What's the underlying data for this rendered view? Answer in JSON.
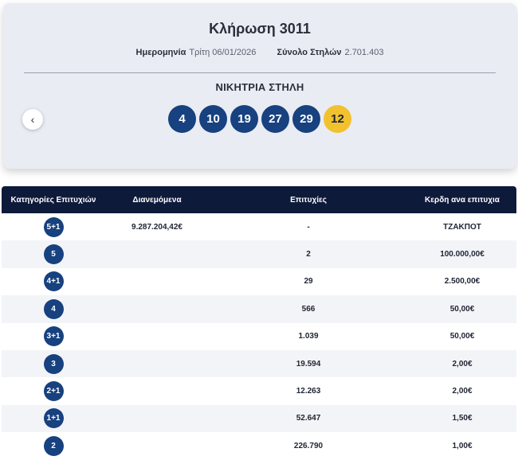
{
  "draw": {
    "title": "Κλήρωση 3011",
    "date_label": "Ημερομηνία",
    "date_value": "Τρίτη 06/01/2026",
    "columns_label": "Σύνολο Στηλών",
    "columns_value": "2.701.403",
    "winning_label": "ΝΙΚΗΤΡΙΑ ΣΤΗΛΗ",
    "prev_icon": "chevron-left-icon",
    "numbers": [
      "4",
      "10",
      "19",
      "27",
      "29"
    ],
    "bonus": "12",
    "colors": {
      "ball": "#17417f",
      "bonus": "#f2c12e",
      "header": "#0e1a3a"
    }
  },
  "table": {
    "headers": [
      "Κατηγορίες Επιτυχιών",
      "Διανεμόμενα",
      "Επιτυχίες",
      "Κερδη ανα επιτυχια"
    ],
    "rows": [
      {
        "category": "5+1",
        "distributed": "9.287.204,42€",
        "winners": "-",
        "prize": "ΤΖΑΚΠΟΤ"
      },
      {
        "category": "5",
        "distributed": "",
        "winners": "2",
        "prize": "100.000,00€"
      },
      {
        "category": "4+1",
        "distributed": "",
        "winners": "29",
        "prize": "2.500,00€"
      },
      {
        "category": "4",
        "distributed": "",
        "winners": "566",
        "prize": "50,00€"
      },
      {
        "category": "3+1",
        "distributed": "",
        "winners": "1.039",
        "prize": "50,00€"
      },
      {
        "category": "3",
        "distributed": "",
        "winners": "19.594",
        "prize": "2,00€"
      },
      {
        "category": "2+1",
        "distributed": "",
        "winners": "12.263",
        "prize": "2,00€"
      },
      {
        "category": "1+1",
        "distributed": "",
        "winners": "52.647",
        "prize": "1,50€"
      },
      {
        "category": "2",
        "distributed": "",
        "winners": "226.790",
        "prize": "1,00€"
      }
    ]
  }
}
